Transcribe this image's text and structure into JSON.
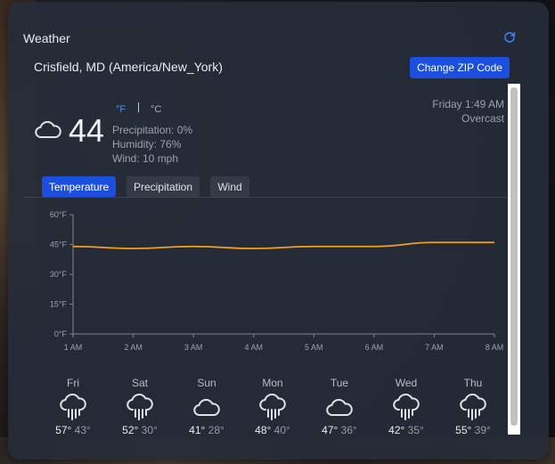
{
  "widget": {
    "title": "Weather",
    "location": "Crisfield, MD (America/New_York)",
    "change_zip_label": "Change ZIP Code"
  },
  "current": {
    "temp": "44",
    "unit_f": "°F",
    "unit_c": "°C",
    "precipitation": "Precipitation: 0%",
    "humidity": "Humidity: 76%",
    "wind": "Wind: 10 mph",
    "day_time": "Friday 1:49 AM",
    "description": "Overcast",
    "icon": "cloud-icon"
  },
  "tabs": [
    "Temperature",
    "Precipitation",
    "Wind"
  ],
  "chart_data": {
    "type": "line",
    "x": [
      "1 AM",
      "2 AM",
      "3 AM",
      "4 AM",
      "5 AM",
      "6 AM",
      "7 AM",
      "8 AM"
    ],
    "series": [
      {
        "values": [
          44,
          43,
          44,
          43,
          44,
          44,
          46,
          46
        ]
      }
    ],
    "y_ticks": [
      "0°F",
      "15°F",
      "30°F",
      "45°F",
      "60°F"
    ],
    "ylim": [
      0,
      60
    ],
    "color": "#f0a020"
  },
  "forecast": [
    {
      "day": "Fri",
      "hi": "57°",
      "lo": "43°",
      "icon": "rain-cloud-icon"
    },
    {
      "day": "Sat",
      "hi": "52°",
      "lo": "30°",
      "icon": "rain-cloud-icon"
    },
    {
      "day": "Sun",
      "hi": "41°",
      "lo": "28°",
      "icon": "cloud-icon"
    },
    {
      "day": "Mon",
      "hi": "48°",
      "lo": "40°",
      "icon": "rain-cloud-icon"
    },
    {
      "day": "Tue",
      "hi": "47°",
      "lo": "36°",
      "icon": "cloud-icon"
    },
    {
      "day": "Wed",
      "hi": "42°",
      "lo": "35°",
      "icon": "rain-cloud-icon"
    },
    {
      "day": "Thu",
      "hi": "55°",
      "lo": "39°",
      "icon": "rain-cloud-icon"
    }
  ]
}
